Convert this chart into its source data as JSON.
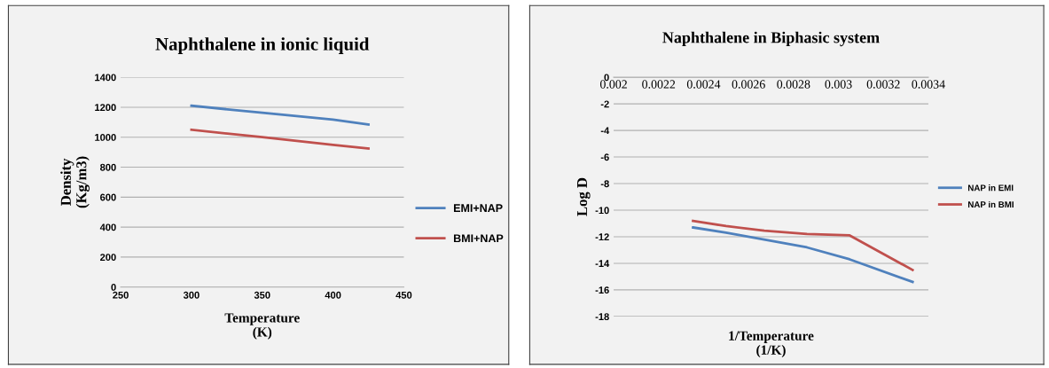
{
  "chart_data": [
    {
      "type": "line",
      "title": "Naphthalene in ionic liquid",
      "xlabel": "Temperature\n(K)",
      "ylabel": "Density\n(Kg/m3)",
      "xlim": [
        250,
        450
      ],
      "xticks": [
        250,
        300,
        350,
        400,
        450
      ],
      "ylim": [
        0,
        1400
      ],
      "yticks": [
        0,
        200,
        400,
        600,
        800,
        1000,
        1200,
        1400
      ],
      "grid": "y",
      "legend": "right",
      "x": [
        300,
        350,
        400,
        425
      ],
      "series": [
        {
          "name": "EMI+NAP",
          "color": "#4f81bd",
          "values": [
            1210,
            1163,
            1117,
            1085
          ]
        },
        {
          "name": "BMI+NAP",
          "color": "#c0504d",
          "values": [
            1050,
            1000,
            949,
            925
          ]
        }
      ]
    },
    {
      "type": "line",
      "title": "Naphthalene in Biphasic system",
      "xlabel": "1/Temperature\n(1/K)",
      "ylabel": "Log D",
      "xlim": [
        0.002,
        0.0034
      ],
      "xticks": [
        0.002,
        0.0022,
        0.0024,
        0.0026,
        0.0028,
        0.003,
        0.0032,
        0.0034
      ],
      "ylim": [
        -18,
        0
      ],
      "yticks": [
        -18,
        -16,
        -14,
        -12,
        -10,
        -8,
        -6,
        -4,
        -2,
        0
      ],
      "grid": "y",
      "legend": "right",
      "series": [
        {
          "name": "NAP in EMI",
          "color": "#4f81bd",
          "x": [
            0.002353,
            0.0025,
            0.00286,
            0.00305,
            0.00333
          ],
          "values": [
            -11.3,
            -11.7,
            -12.8,
            -13.7,
            -15.4
          ]
        },
        {
          "name": "NAP in BMI",
          "color": "#c0504d",
          "x": [
            0.002353,
            0.0025,
            0.00267,
            0.00286,
            0.00305,
            0.00333
          ],
          "values": [
            -10.8,
            -11.2,
            -11.55,
            -11.8,
            -11.9,
            -14.5
          ]
        }
      ]
    }
  ]
}
